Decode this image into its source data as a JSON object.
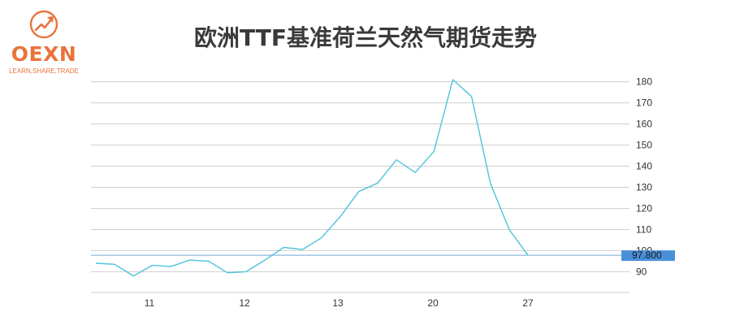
{
  "logo": {
    "name": "OEXN",
    "tagline": "LEARN,SHARE,TRADE",
    "icon": "trending-up-arrow-icon",
    "color": "#e8743b"
  },
  "chart_data": {
    "type": "line",
    "title": "欧洲TTF基准荷兰天然气期货走势",
    "xlabel": "",
    "ylabel": "",
    "x_tick_labels": [
      "11",
      "12",
      "13",
      "20",
      "27"
    ],
    "y_ticks": [
      90,
      100,
      110,
      120,
      130,
      140,
      150,
      160,
      170,
      180
    ],
    "ylim": [
      84,
      181
    ],
    "y_axis_position": "right",
    "grid": true,
    "legend": "none",
    "series": [
      {
        "color": "#4dc3dd",
        "values": [
          94,
          93.5,
          88,
          93,
          92.5,
          95.5,
          95,
          89.5,
          90,
          95.5,
          101.5,
          100.5,
          106,
          116,
          128,
          132,
          143,
          137,
          147,
          181,
          173,
          132,
          110,
          97.8
        ]
      }
    ],
    "last_value": {
      "value": 97.8,
      "label": "97.800",
      "color": "#4a90d9"
    }
  }
}
